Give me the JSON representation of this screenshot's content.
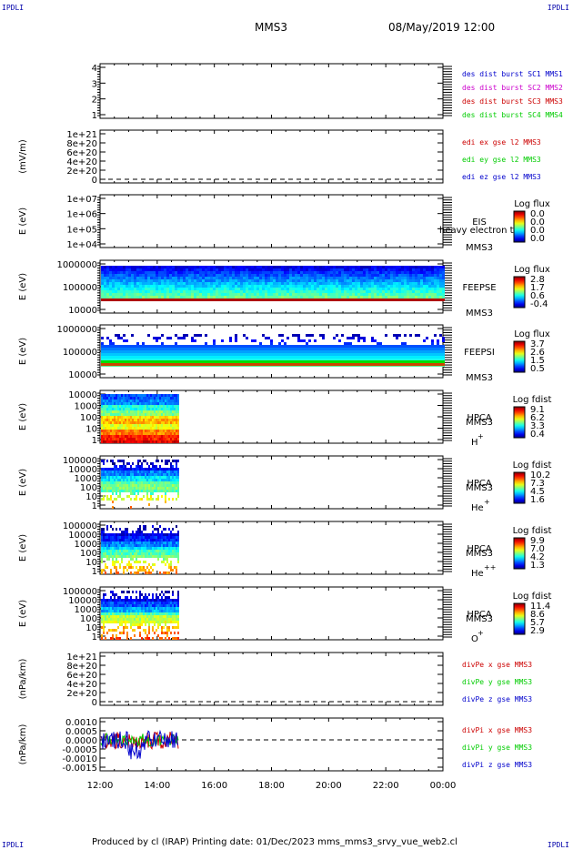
{
  "header": {
    "corner_label": "IPDLI",
    "spacecraft": "MMS3",
    "datetime": "08/May/2019 12:00"
  },
  "footer": {
    "text": "Produced by cl (IRAP)   Printing date: 01/Dec/2023   mms_mms3_srvy_vue_web2.cl"
  },
  "colors": {
    "frame": "#000000",
    "blue": "#0000cc",
    "magenta": "#cc00cc",
    "red": "#cc0000",
    "green": "#00cc00"
  },
  "chart_data": [
    {
      "type": "line",
      "panel": "burst",
      "ylabel": "",
      "yticks": [
        "4",
        "3",
        "2",
        "1"
      ],
      "series": [
        {
          "name": "des dist burst SC1 MMS1",
          "color": "#0000cc",
          "values": []
        },
        {
          "name": "des dist burst SC2 MMS2",
          "color": "#cc00cc",
          "values": []
        },
        {
          "name": "des dist burst SC3 MMS3",
          "color": "#cc0000",
          "values": []
        },
        {
          "name": "des dist burst SC4 MMS4",
          "color": "#00cc00",
          "values": []
        }
      ]
    },
    {
      "type": "line",
      "panel": "edi",
      "ylabel": "(mV/m)",
      "yticks": [
        "1e+21",
        "8e+20",
        "6e+20",
        "4e+20",
        "2e+20",
        "0"
      ],
      "series": [
        {
          "name": "edi ex gse l2 MMS3",
          "color": "#cc0000",
          "values": []
        },
        {
          "name": "edi ey gse l2 MMS3",
          "color": "#00cc00",
          "values": []
        },
        {
          "name": "edi ez gse l2 MMS3",
          "color": "#0000cc",
          "values": []
        }
      ]
    },
    {
      "type": "heatmap",
      "panel": "eis",
      "ylabel": "E (eV)",
      "yticks": [
        "1e+07",
        "1e+06",
        "1e+05",
        "1e+04"
      ],
      "instrument": [
        "EIS",
        "MMS3"
      ],
      "overlay_text": "heavy electron to",
      "colorbar": {
        "title": "Log flux",
        "ticks": [
          "0.0",
          "0.0",
          "0.0",
          "0.0"
        ]
      }
    },
    {
      "type": "heatmap",
      "panel": "feepse",
      "ylabel": "E (eV)",
      "yticks": [
        "1000000",
        "100000",
        "10000"
      ],
      "instrument": [
        "FEEPSE",
        "MMS3"
      ],
      "colorbar": {
        "title": "Log flux",
        "ticks": [
          "2.8",
          "1.7",
          "0.6",
          "-0.4"
        ]
      }
    },
    {
      "type": "heatmap",
      "panel": "feepsi",
      "ylabel": "E (eV)",
      "yticks": [
        "1000000",
        "100000",
        "10000"
      ],
      "instrument": [
        "FEEPSI",
        "MMS3"
      ],
      "colorbar": {
        "title": "Log flux",
        "ticks": [
          "3.7",
          "2.6",
          "1.5",
          "0.5"
        ]
      }
    },
    {
      "type": "heatmap",
      "panel": "hpca_h",
      "ylabel": "E (eV)",
      "yticks": [
        "10000",
        "1000",
        "100",
        "10",
        "1"
      ],
      "instrument": [
        "HPCA",
        "MMS3"
      ],
      "species": {
        "base": "H",
        "sup": "+"
      },
      "colorbar": {
        "title": "Log fdist",
        "ticks": [
          "9.1",
          "6.2",
          "3.3",
          "0.4"
        ]
      }
    },
    {
      "type": "heatmap",
      "panel": "hpca_he",
      "ylabel": "E (eV)",
      "yticks": [
        "100000",
        "10000",
        "1000",
        "100",
        "10",
        "1"
      ],
      "instrument": [
        "HPCA",
        "MMS3"
      ],
      "species": {
        "base": "He",
        "sup": "+"
      },
      "colorbar": {
        "title": "Log fdist",
        "ticks": [
          "10.2",
          "7.3",
          "4.5",
          "1.6"
        ]
      }
    },
    {
      "type": "heatmap",
      "panel": "hpca_hepp",
      "ylabel": "E (eV)",
      "yticks": [
        "100000",
        "10000",
        "1000",
        "100",
        "10",
        "1"
      ],
      "instrument": [
        "HPCA",
        "MMS3"
      ],
      "species": {
        "base": "He",
        "sup": "++"
      },
      "colorbar": {
        "title": "Log fdist",
        "ticks": [
          "9.9",
          "7.0",
          "4.2",
          "1.3"
        ]
      }
    },
    {
      "type": "heatmap",
      "panel": "hpca_o",
      "ylabel": "E (eV)",
      "yticks": [
        "100000",
        "10000",
        "1000",
        "100",
        "10",
        "1"
      ],
      "instrument": [
        "HPCA",
        "MMS3"
      ],
      "species": {
        "base": "O",
        "sup": "+"
      },
      "colorbar": {
        "title": "Log fdist",
        "ticks": [
          "11.4",
          "8.6",
          "5.7",
          "2.9"
        ]
      }
    },
    {
      "type": "line",
      "panel": "divpe",
      "ylabel": "(nPa/km)",
      "yticks": [
        "1e+21",
        "8e+20",
        "6e+20",
        "4e+20",
        "2e+20",
        "0"
      ],
      "series": [
        {
          "name": "divPe x gse MMS3",
          "color": "#cc0000",
          "values": []
        },
        {
          "name": "divPe y gse MMS3",
          "color": "#00cc00",
          "values": []
        },
        {
          "name": "divPe z gse MMS3",
          "color": "#0000cc",
          "values": []
        }
      ]
    },
    {
      "type": "line",
      "panel": "divpi",
      "ylabel": "(nPa/km)",
      "yticks": [
        "0.0010",
        "0.0005",
        "0.0000",
        "-0.0005",
        "-0.0010",
        "-0.0015"
      ],
      "ylim": [
        -0.0015,
        0.0011
      ],
      "data_xrange": [
        "12:00",
        "14:45"
      ],
      "series": [
        {
          "name": "divPi x gse MMS3",
          "color": "#cc0000"
        },
        {
          "name": "divPi y gse MMS3",
          "color": "#00cc00"
        },
        {
          "name": "divPi z gse MMS3",
          "color": "#0000cc"
        }
      ]
    }
  ],
  "x_axis": {
    "ticks": [
      "12:00",
      "14:00",
      "16:00",
      "18:00",
      "20:00",
      "22:00",
      "00:00"
    ],
    "range_hours": [
      12,
      24
    ]
  }
}
